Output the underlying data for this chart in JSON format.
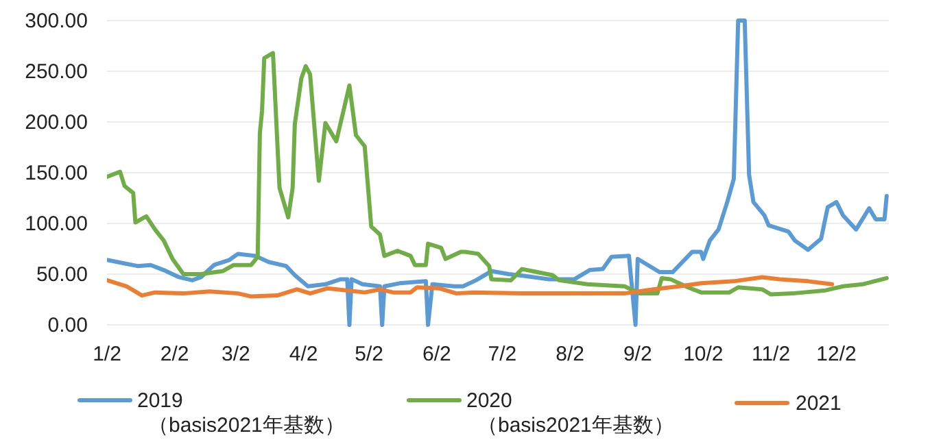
{
  "chart_data": {
    "type": "line",
    "xlim": [
      "--01-02",
      "--12-26"
    ],
    "ylim": [
      0,
      300
    ],
    "yticks": [
      {
        "value": 0,
        "label": "0.00"
      },
      {
        "value": 50,
        "label": "50.00"
      },
      {
        "value": 100,
        "label": "100.00"
      },
      {
        "value": 150,
        "label": "150.00"
      },
      {
        "value": 200,
        "label": "200.00"
      },
      {
        "value": 250,
        "label": "250.00"
      },
      {
        "value": 300,
        "label": "300.00"
      }
    ],
    "xticks": [
      {
        "value": "--01-02",
        "label": "1/2"
      },
      {
        "value": "--02-02",
        "label": "2/2"
      },
      {
        "value": "--03-02",
        "label": "3/2"
      },
      {
        "value": "--04-02",
        "label": "4/2"
      },
      {
        "value": "--05-02",
        "label": "5/2"
      },
      {
        "value": "--06-02",
        "label": "6/2"
      },
      {
        "value": "--07-02",
        "label": "7/2"
      },
      {
        "value": "--08-02",
        "label": "8/2"
      },
      {
        "value": "--09-02",
        "label": "9/2"
      },
      {
        "value": "--10-02",
        "label": "10/2"
      },
      {
        "value": "--11-02",
        "label": "11/2"
      },
      {
        "value": "--12-02",
        "label": "12/2"
      }
    ],
    "grid": "y",
    "legend": "bottom",
    "series": [
      {
        "name": "2019\n（basis2021年基数）",
        "color": "#5b9bd5",
        "x": [
          "--01-02",
          "--01-09",
          "--01-16",
          "--01-22",
          "--01-28",
          "--02-04",
          "--02-10",
          "--02-14",
          "--02-20",
          "--02-27",
          "--03-03",
          "--03-11",
          "--03-17",
          "--03-25",
          "--03-29",
          "--04-04",
          "--04-12",
          "--04-19",
          "--04-22",
          "--04-23",
          "--04-24",
          "--04-29",
          "--05-07",
          "--05-08",
          "--05-09",
          "--05-16",
          "--05-28",
          "--05-29",
          "--05-31",
          "--06-10",
          "--06-14",
          "--06-20",
          "--06-27",
          "--07-05",
          "--07-13",
          "--07-23",
          "--08-04",
          "--08-11",
          "--08-17",
          "--08-21",
          "--08-29",
          "--09-01",
          "--09-02",
          "--09-12",
          "--09-18",
          "--09-27",
          "--10-01",
          "--10-02",
          "--10-05",
          "--10-09",
          "--10-13",
          "--10-16",
          "--10-18",
          "--10-21",
          "--10-23",
          "--10-25",
          "--10-30",
          "--11-01",
          "--11-10",
          "--11-13",
          "--11-19",
          "--11-25",
          "--11-28",
          "--12-02",
          "--12-05",
          "--12-11",
          "--12-17",
          "--12-20",
          "--12-24",
          "--12-25"
        ],
        "values": [
          64,
          61,
          58,
          59,
          54,
          47,
          44,
          47,
          59,
          64,
          70,
          68,
          62,
          58,
          49,
          38,
          40,
          45,
          45,
          0,
          45,
          40,
          38,
          0,
          38,
          41,
          43,
          0,
          40,
          38,
          38,
          44,
          53,
          50,
          48,
          45,
          45,
          54,
          55,
          67,
          68,
          0,
          65,
          52,
          52,
          72,
          72,
          65,
          83,
          94,
          121,
          144,
          300,
          300,
          148,
          121,
          108,
          98,
          92,
          83,
          74,
          85,
          116,
          121,
          108,
          94,
          115,
          104,
          104,
          127
        ]
      },
      {
        "name": "2020\n（basis2021年基数）",
        "color": "#70ad47",
        "x": [
          "--01-02",
          "--01-08",
          "--01-10",
          "--01-14",
          "--01-15",
          "--01-20",
          "--01-24",
          "--01-28",
          "--02-01",
          "--02-06",
          "--02-14",
          "--02-24",
          "--03-01",
          "--03-09",
          "--03-12",
          "--03-13",
          "--03-14",
          "--03-15",
          "--03-19",
          "--03-22",
          "--03-26",
          "--03-28",
          "--03-29",
          "--04-01",
          "--04-03",
          "--04-05",
          "--04-09",
          "--04-12",
          "--04-17",
          "--04-23",
          "--04-26",
          "--04-30",
          "--05-03",
          "--05-07",
          "--05-09",
          "--05-15",
          "--05-21",
          "--05-23",
          "--05-28",
          "--05-29",
          "--06-04",
          "--06-06",
          "--06-13",
          "--06-15",
          "--06-21",
          "--06-26",
          "--06-27",
          "--07-06",
          "--07-11",
          "--07-18",
          "--07-25",
          "--07-28",
          "--08-10",
          "--08-27",
          "--09-03",
          "--09-11",
          "--09-13",
          "--09-17",
          "--09-25",
          "--10-01",
          "--10-14",
          "--10-18",
          "--10-29",
          "--11-02",
          "--11-12",
          "--11-27",
          "--12-05",
          "--12-14",
          "--12-25"
        ],
        "values": [
          146,
          151,
          137,
          130,
          101,
          107,
          94,
          83,
          65,
          50,
          50,
          53,
          59,
          59,
          67,
          189,
          211,
          263,
          268,
          135,
          106,
          135,
          198,
          243,
          255,
          247,
          142,
          199,
          181,
          236,
          187,
          176,
          97,
          89,
          68,
          73,
          68,
          59,
          59,
          80,
          76,
          65,
          72,
          72,
          70,
          58,
          45,
          44,
          55,
          52,
          49,
          44,
          40,
          38,
          31,
          31,
          46,
          45,
          37,
          32,
          32,
          37,
          35,
          30,
          31,
          34,
          38,
          40,
          46
        ]
      },
      {
        "name": "2021",
        "color": "#ed7d31",
        "x": [
          "--01-02",
          "--01-11",
          "--01-18",
          "--01-24",
          "--02-06",
          "--02-18",
          "--03-03",
          "--03-09",
          "--03-21",
          "--03-30",
          "--04-05",
          "--04-13",
          "--04-30",
          "--05-07",
          "--05-13",
          "--05-21",
          "--05-24",
          "--06-03",
          "--06-11",
          "--06-19",
          "--07-10",
          "--08-10",
          "--08-27",
          "--09-09",
          "--09-21",
          "--10-01",
          "--10-16",
          "--10-29",
          "--11-06",
          "--11-19",
          "--11-30"
        ],
        "values": [
          44,
          38,
          29,
          32,
          31,
          33,
          31,
          28,
          29,
          35,
          31,
          36,
          32,
          35,
          32,
          32,
          37,
          36,
          31,
          32,
          31,
          31,
          31,
          35,
          38,
          41,
          43,
          47,
          45,
          43,
          40
        ]
      }
    ]
  }
}
